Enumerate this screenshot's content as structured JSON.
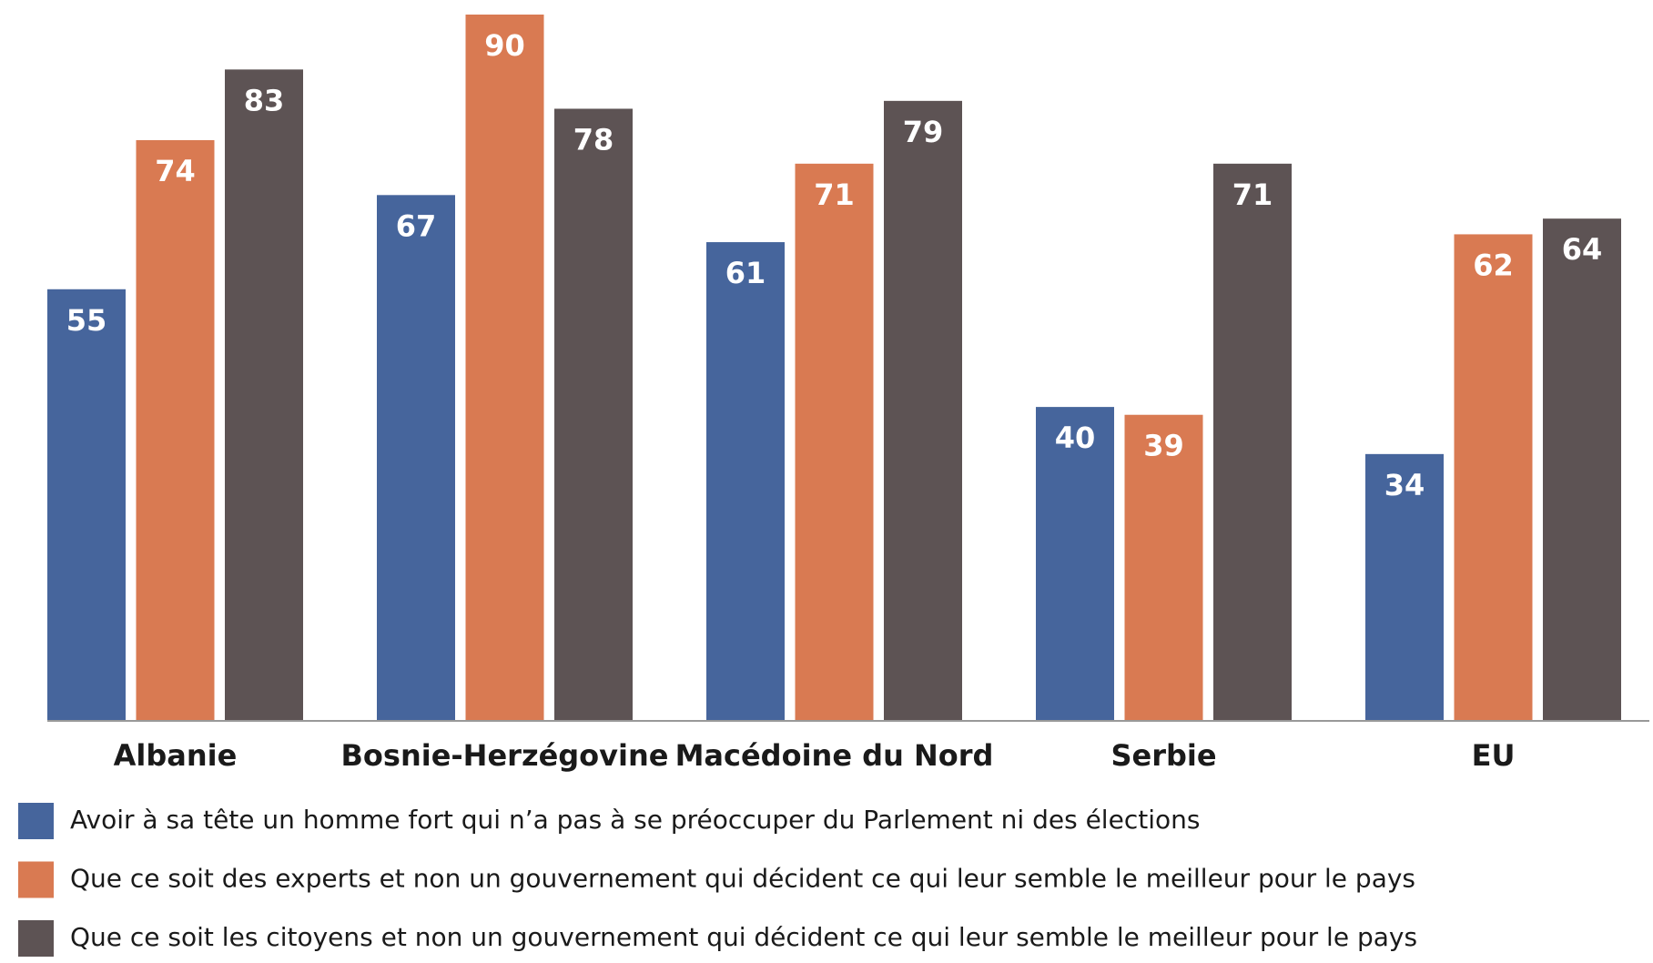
{
  "chart_data": {
    "type": "bar",
    "categories": [
      "Albanie",
      "Bosnie-Herzégovine",
      "Macédoine du Nord",
      "Serbie",
      "EU"
    ],
    "series": [
      {
        "name": "Avoir à sa tête un homme fort qui n’a pas à se préoccuper du Parlement ni des élections",
        "color": "#46659c",
        "values": [
          55,
          67,
          61,
          40,
          34
        ]
      },
      {
        "name": "Que ce soit des experts et non un gouvernement qui décident ce qui leur semble le meilleur pour le pays",
        "color": "#d97a52",
        "values": [
          74,
          90,
          71,
          39,
          62
        ]
      },
      {
        "name": "Que ce soit les citoyens et non un gouvernement qui décident ce qui leur semble le meilleur pour le pays",
        "color": "#5d5354",
        "values": [
          83,
          78,
          79,
          71,
          64
        ]
      }
    ],
    "legend": "bottom-left"
  }
}
